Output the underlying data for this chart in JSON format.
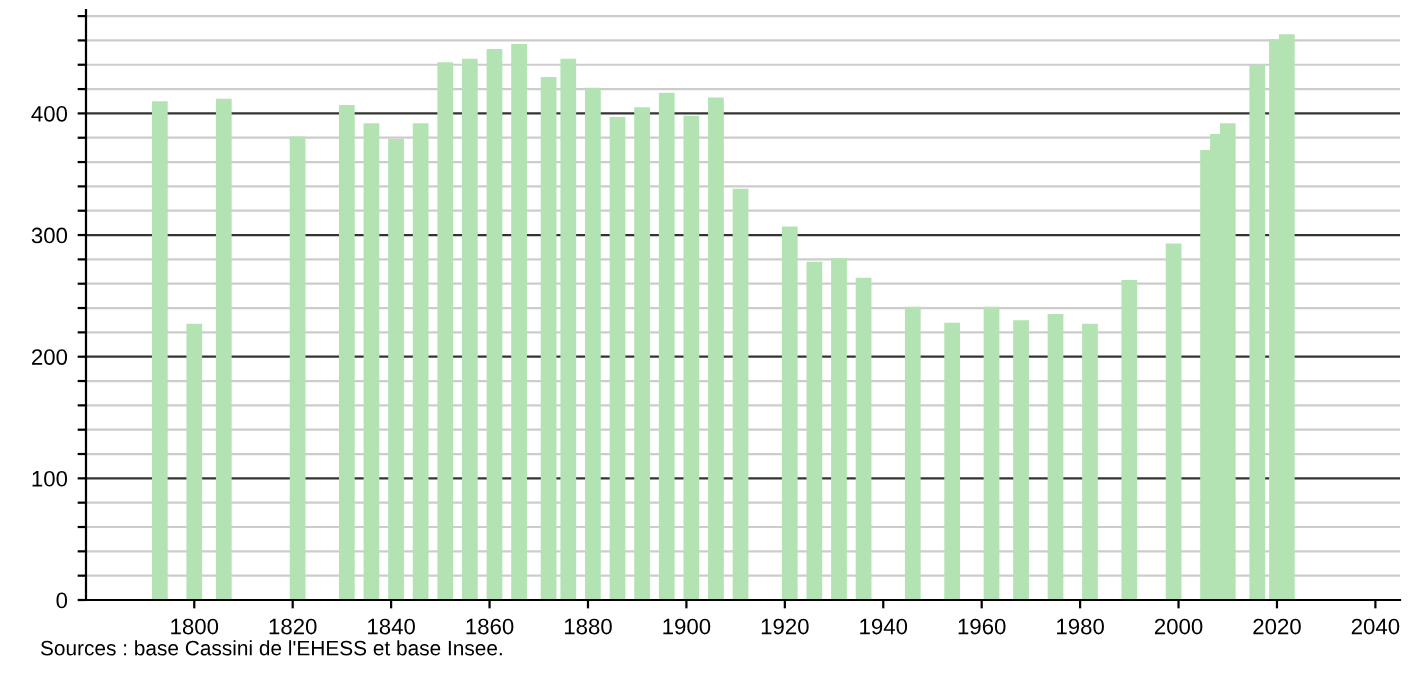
{
  "chart_data": {
    "type": "bar",
    "x": [
      1793,
      1800,
      1806,
      1821,
      1831,
      1836,
      1841,
      1846,
      1851,
      1856,
      1861,
      1866,
      1872,
      1876,
      1881,
      1886,
      1891,
      1896,
      1901,
      1906,
      1911,
      1921,
      1926,
      1931,
      1936,
      1946,
      1954,
      1962,
      1968,
      1975,
      1982,
      1990,
      1999,
      2006,
      2008,
      2010,
      2016,
      2020,
      2022
    ],
    "values": [
      410,
      227,
      412,
      381,
      407,
      392,
      379,
      392,
      442,
      445,
      453,
      457,
      430,
      445,
      421,
      397,
      405,
      417,
      398,
      413,
      338,
      307,
      278,
      281,
      265,
      241,
      228,
      241,
      230,
      235,
      227,
      263,
      293,
      370,
      383,
      392,
      440,
      461,
      465
    ],
    "color": "#b3e3b3",
    "xlim": [
      1778,
      2045
    ],
    "xticks": [
      1800,
      1820,
      1840,
      1860,
      1880,
      1900,
      1920,
      1940,
      1960,
      1980,
      2000,
      2020,
      2040
    ],
    "ylim": [
      0,
      485
    ],
    "yticks": [
      0,
      {
        "value": 20,
        "label": null
      },
      {
        "value": 40,
        "label": null
      },
      {
        "value": 60,
        "label": null
      },
      {
        "value": 80,
        "label": null
      },
      100,
      {
        "value": 120,
        "label": null
      },
      {
        "value": 140,
        "label": null
      },
      {
        "value": 160,
        "label": null
      },
      {
        "value": 180,
        "label": null
      },
      200,
      {
        "value": 220,
        "label": null
      },
      {
        "value": 240,
        "label": null
      },
      {
        "value": 260,
        "label": null
      },
      {
        "value": 280,
        "label": null
      },
      300,
      {
        "value": 320,
        "label": null
      },
      {
        "value": 340,
        "label": null
      },
      {
        "value": 360,
        "label": null
      },
      {
        "value": 380,
        "label": null
      },
      400,
      {
        "value": 420,
        "label": null
      },
      {
        "value": 440,
        "label": null
      },
      {
        "value": 460,
        "label": null
      },
      {
        "value": 480,
        "label": null
      }
    ],
    "grid": "y",
    "annotations": [
      "Sources : base Cassini de l'EHESS et base Insee."
    ]
  }
}
